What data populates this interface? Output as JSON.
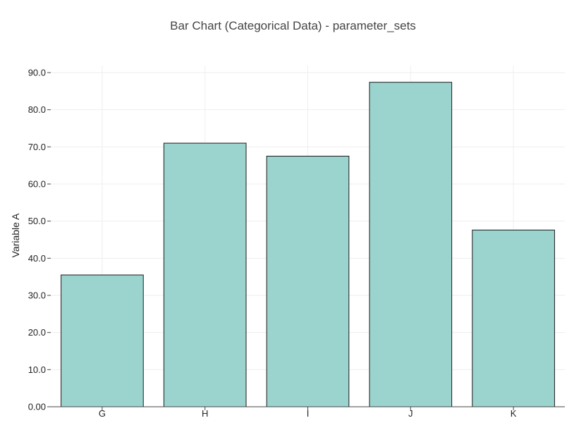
{
  "chart_data": {
    "type": "bar",
    "title": "Bar Chart (Categorical Data) - parameter_sets",
    "xlabel": "",
    "ylabel": "Variable A",
    "categories": [
      "G",
      "H",
      "I",
      "J",
      "K"
    ],
    "values": [
      35.5,
      71.0,
      67.5,
      87.4,
      47.6
    ],
    "ylim": [
      0,
      90
    ],
    "yticks": [
      0,
      10,
      20,
      30,
      40,
      50,
      60,
      70,
      80,
      90
    ],
    "ytick_labels": [
      "0.00",
      "10.0",
      "20.0",
      "30.0",
      "40.0",
      "50.0",
      "60.0",
      "70.0",
      "80.0",
      "90.0"
    ],
    "grid": true,
    "bar_color": "#9bd4cf",
    "bar_edge_color": "#1a1a1a",
    "grid_color": "#eeeeee"
  }
}
